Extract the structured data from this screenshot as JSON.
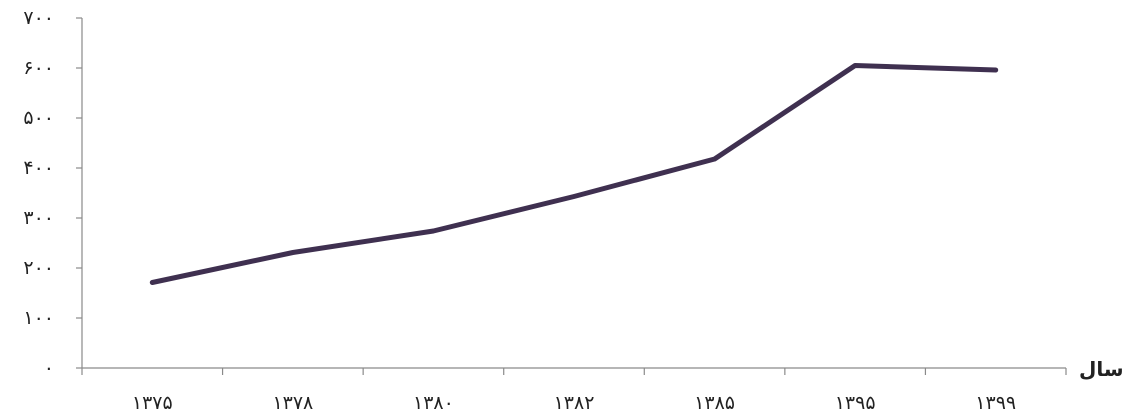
{
  "chart_data": {
    "type": "line",
    "title": "",
    "xlabel": "سال",
    "ylabel": "",
    "categories": [
      "۱۳۷۵",
      "۱۳۷۸",
      "۱۳۸۰",
      "۱۳۸۲",
      "۱۳۸۵",
      "۱۳۹۵",
      "۱۳۹۹"
    ],
    "series": [
      {
        "values": [
          171,
          231,
          274,
          343,
          418,
          605,
          596
        ]
      }
    ],
    "ylim": [
      0,
      700
    ],
    "yticks": [
      0,
      100,
      200,
      300,
      400,
      500,
      600,
      700
    ],
    "ytick_labels": [
      "۰",
      "۱۰۰",
      "۲۰۰",
      "۳۰۰",
      "۴۰۰",
      "۵۰۰",
      "۶۰۰",
      "۷۰۰"
    ],
    "grid": false,
    "legend": "none",
    "line_color": "#3f3050"
  }
}
